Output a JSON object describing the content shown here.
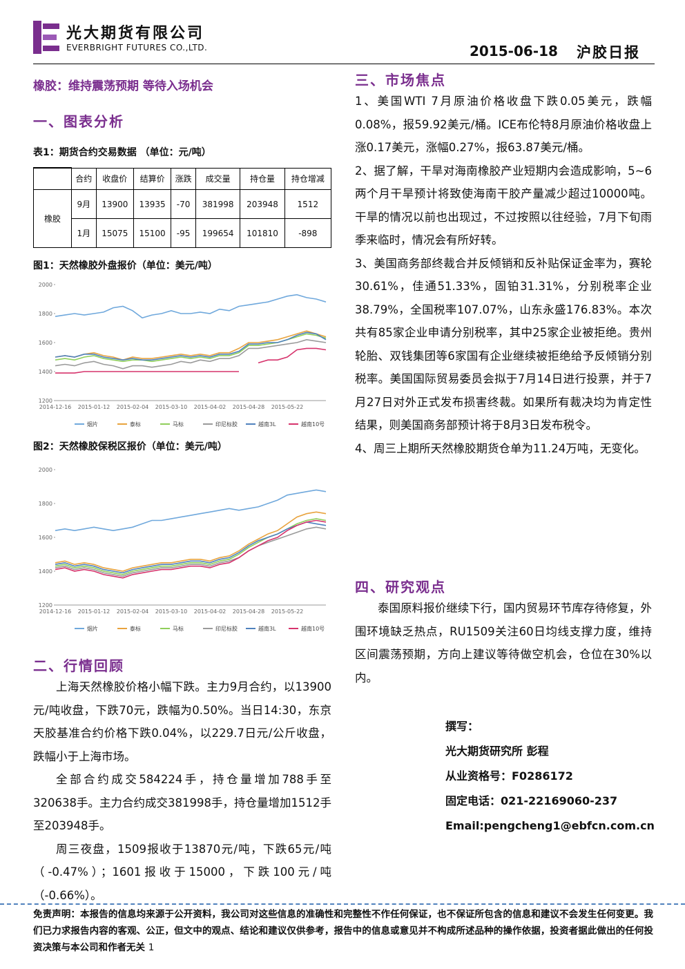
{
  "header": {
    "company_cn": "光大期货有限公司",
    "company_en": "EVERBRIGHT FUTURES CO.,LTD.",
    "date": "2015-06-18",
    "report_name": "沪胶日报"
  },
  "left": {
    "title": "橡胶：维持震荡预期 等待入场机会",
    "section1": "一、图表分析",
    "table_caption": "表1：期货合约交易数据 （单位：元/吨）",
    "table": {
      "columns": [
        "合约",
        "收盘价",
        "结算价",
        "涨跌",
        "成交量",
        "持仓量",
        "持仓增减"
      ],
      "product": "橡胶",
      "rows": [
        [
          "9月",
          13900,
          13935,
          -70,
          381998,
          203948,
          1512
        ],
        [
          "1月",
          15075,
          15100,
          -95,
          199654,
          101810,
          -898
        ]
      ]
    },
    "fig1_caption": "图1：天然橡胶外盘报价（单位：美元/吨）",
    "fig2_caption": "图2：天然橡胶保税区报价（单位：美元/吨）",
    "section2": "二、行情回顾",
    "paragraphs": [
      "上海天然橡胶价格小幅下跌。主力9月合约，以13900元/吨收盘，下跌70元，跌幅为0.50%。当日14:30，东京天胶基准合约价格下跌0.04%，以229.7日元/公斤收盘，跌幅小于上海市场。",
      "全部合约成交584224手，持仓量增加788手至320638手。主力合约成交381998手，持仓量增加1512手至203948手。",
      "周三夜盘，1509报收于13870元/吨，下跌65元/吨（-0.47%）；1601报收于15000，下跌100元/吨（-0.66%）。"
    ]
  },
  "right": {
    "section3": "三、市场焦点",
    "paragraphs": [
      "1、美国WTI 7月原油价格收盘下跌0.05美元，跌幅0.08%，报59.92美元/桶。ICE布伦特8月原油价格收盘上涨0.17美元，涨幅0.27%，报63.87美元/桶。",
      "2、据了解，干旱对海南橡胶产业短期内会造成影响，5~6两个月干旱预计将致使海南干胶产量减少超过10000吨。干旱的情况以前也出现过，不过按照以往经验，7月下旬雨季来临时，情况会有所好转。",
      "3、美国商务部终裁合并反倾销和反补贴保证金率为，赛轮30.61%，佳通51.33%，固铂31.31%，分别税率企业38.79%，全国税率107.07%，山东永盛176.83%。本次共有85家企业申请分别税率，其中25家企业被拒绝。贵州轮胎、双钱集团等6家国有企业继续被拒绝给予反倾销分别税率。美国国际贸易委员会拟于7月14日进行投票，并于7月27日对外正式发布损害终裁。如果所有裁决均为肯定性结果，则美国商务部预计将于8月3日发布税令。",
      "4、周三上期所天然橡胶期货仓单为11.24万吨，无变化。"
    ],
    "section4": "四、研究观点",
    "view": "泰国原料报价继续下行，国内贸易环节库存待修复，外围环境缺乏热点，RU1509关注60日均线支撑力度，维持区间震荡预期，方向上建议等待做空机会，仓位在30%以内。",
    "author": [
      "撰写：",
      "光大期货研究所 彭程",
      "从业资格号：F0286172",
      "固定电话：021-22169060-237",
      "Email:pengcheng1@ebfcn.com.cn"
    ]
  },
  "footer": {
    "disclaimer": "免责声明：本报告的信息均来源于公开资料，我公司对这些信息的准确性和完整性不作任何保证，也不保证所包含的信息和建议不会发生任何变更。我们已力求报告内容的客观、公正，但文中的观点、结论和建议仅供参考，报告中的信息或意见并不构成所述品种的操作依据，投资者据此做出的任何投资决策与本公司和作者无关",
    "page": "1"
  },
  "chart_data": [
    {
      "type": "line",
      "categories": [
        "2014-12-16",
        null,
        null,
        null,
        "2015-01-12",
        null,
        null,
        null,
        "2015-02-04",
        null,
        null,
        null,
        "2015-03-10",
        null,
        null,
        null,
        "2015-04-02",
        null,
        null,
        null,
        "2015-04-28",
        null,
        null,
        null,
        "2015-05-22",
        null,
        null,
        null,
        null
      ],
      "ylim": [
        1200,
        2000
      ],
      "yticks": [
        1200,
        1400,
        1600,
        1800,
        2000
      ],
      "grid": false,
      "legend": "bottom",
      "series": [
        {
          "name": "烟片",
          "color": "#6fa8dc",
          "values": [
            1780,
            1790,
            1800,
            1790,
            1800,
            1810,
            1840,
            1850,
            1820,
            1770,
            1790,
            1800,
            1820,
            1800,
            1800,
            1810,
            1800,
            1830,
            1820,
            1850,
            1860,
            1870,
            1880,
            1900,
            1920,
            1930,
            1910,
            1900,
            1880
          ]
        },
        {
          "name": "泰标",
          "color": "#e8a33d",
          "values": [
            1500,
            1510,
            1500,
            1520,
            1530,
            1510,
            1500,
            1480,
            1500,
            1490,
            1490,
            1500,
            1510,
            1520,
            1510,
            1520,
            1510,
            1530,
            1530,
            1560,
            1600,
            1600,
            1610,
            1620,
            1640,
            1660,
            1680,
            1660,
            1640
          ]
        },
        {
          "name": "马标",
          "color": "#8fce5a",
          "values": [
            1480,
            1490,
            1480,
            1500,
            1510,
            1490,
            1480,
            1470,
            1480,
            1480,
            1470,
            1480,
            1490,
            1500,
            1490,
            1500,
            1490,
            1510,
            1510,
            1530,
            1580,
            1580,
            1590,
            1600,
            1620,
            1640,
            1660,
            1650,
            1630
          ]
        },
        {
          "name": "印尼标胶",
          "color": "#9a9a9a",
          "values": [
            1440,
            1450,
            1440,
            1460,
            1470,
            1450,
            1440,
            1420,
            1440,
            1440,
            1430,
            1440,
            1450,
            1470,
            1460,
            1480,
            1470,
            1490,
            1490,
            1510,
            1560,
            1560,
            1570,
            1580,
            1590,
            1600,
            1620,
            1610,
            1600
          ]
        },
        {
          "name": "越南3L",
          "color": "#4f81bd",
          "values": [
            1500,
            1510,
            1500,
            1520,
            1520,
            1500,
            1490,
            1480,
            1490,
            1480,
            1480,
            1490,
            1500,
            1510,
            1500,
            1510,
            1500,
            1520,
            1520,
            1540,
            1590,
            1590,
            1600,
            1600,
            1620,
            1650,
            1670,
            1660,
            1620
          ]
        },
        {
          "name": "越南10号",
          "color": "#d6336c",
          "values": [
            1390,
            1390,
            1390,
            1400,
            1400,
            1400,
            1400,
            1400,
            1400,
            1400,
            1400,
            1400,
            1400,
            1400,
            1400,
            1400,
            1400,
            1400,
            1400,
            1400,
            null,
            1460,
            1480,
            1480,
            1500,
            1550,
            1560,
            1560,
            1550
          ]
        }
      ]
    },
    {
      "type": "line",
      "categories": [
        "2014-12-16",
        null,
        null,
        null,
        "2015-01-12",
        null,
        null,
        null,
        "2015-02-04",
        null,
        null,
        null,
        "2015-03-10",
        null,
        null,
        null,
        "2015-04-02",
        null,
        null,
        null,
        "2015-04-28",
        null,
        null,
        null,
        "2015-05-22",
        null,
        null,
        null,
        null
      ],
      "ylim": [
        1200,
        2000
      ],
      "yticks": [
        1200,
        1400,
        1600,
        1800,
        2000
      ],
      "grid": false,
      "legend": "bottom",
      "series": [
        {
          "name": "烟片",
          "color": "#6fa8dc",
          "values": [
            1640,
            1650,
            1640,
            1650,
            1660,
            1650,
            1640,
            1650,
            1660,
            1680,
            1700,
            1700,
            1710,
            1720,
            1730,
            1740,
            1750,
            1760,
            1770,
            1760,
            1770,
            1780,
            1800,
            1820,
            1850,
            1860,
            1870,
            1880,
            1870
          ]
        },
        {
          "name": "泰标",
          "color": "#e8a33d",
          "values": [
            1450,
            1460,
            1440,
            1450,
            1440,
            1420,
            1410,
            1400,
            1420,
            1430,
            1440,
            1450,
            1450,
            1460,
            1470,
            1470,
            1460,
            1480,
            1490,
            1520,
            1560,
            1590,
            1620,
            1640,
            1680,
            1720,
            1740,
            1750,
            1740
          ]
        },
        {
          "name": "马标",
          "color": "#8fce5a",
          "values": [
            1430,
            1440,
            1420,
            1430,
            1420,
            1400,
            1390,
            1380,
            1400,
            1410,
            1420,
            1430,
            1430,
            1440,
            1450,
            1450,
            1440,
            1460,
            1470,
            1500,
            1540,
            1570,
            1600,
            1620,
            1650,
            1680,
            1700,
            1710,
            1700
          ]
        },
        {
          "name": "印尼标胶",
          "color": "#9a9a9a",
          "values": [
            1420,
            1430,
            1410,
            1420,
            1410,
            1390,
            1380,
            1370,
            1390,
            1400,
            1410,
            1420,
            1420,
            1430,
            1440,
            1440,
            1430,
            1450,
            1460,
            1480,
            1520,
            1550,
            1570,
            1590,
            1610,
            1630,
            1650,
            1660,
            1650
          ]
        },
        {
          "name": "越南3L",
          "color": "#4f81bd",
          "values": [
            1440,
            1450,
            1430,
            1440,
            1430,
            1410,
            1400,
            1390,
            1410,
            1420,
            1430,
            1440,
            1440,
            1450,
            1460,
            1460,
            1450,
            1470,
            1480,
            1510,
            1550,
            1580,
            1600,
            1620,
            1650,
            1670,
            1690,
            1680,
            1670
          ]
        },
        {
          "name": "越南10号",
          "color": "#d6336c",
          "values": [
            1410,
            1420,
            1400,
            1410,
            1400,
            1380,
            1370,
            1360,
            1380,
            1390,
            1400,
            1410,
            1410,
            1420,
            1430,
            1430,
            1420,
            1440,
            1450,
            1480,
            1520,
            1550,
            1580,
            1600,
            1640,
            1670,
            1690,
            1700,
            1690
          ]
        }
      ]
    }
  ]
}
